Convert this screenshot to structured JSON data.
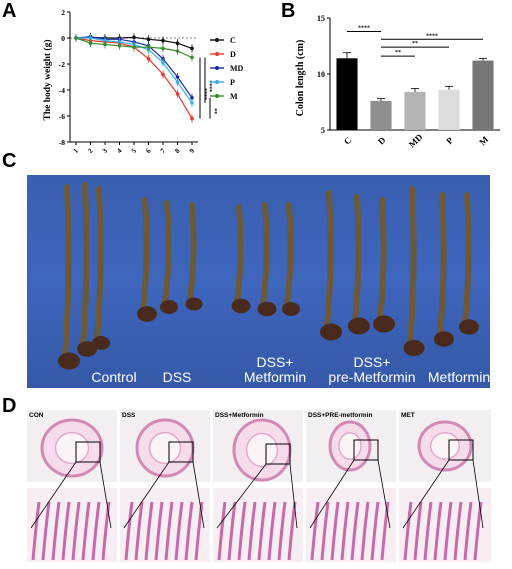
{
  "panels": {
    "a": "A",
    "b": "B",
    "c": "C",
    "d": "D"
  },
  "chart_data": [
    {
      "type": "line",
      "ylabel": "The body weight (g)",
      "xlabel": "",
      "x": [
        1,
        2,
        3,
        4,
        5,
        6,
        7,
        8,
        9
      ],
      "ylim": [
        -8,
        2
      ],
      "yticks": [
        2,
        0,
        -2,
        -4,
        -6,
        -8
      ],
      "series": [
        {
          "name": "C",
          "color": "#111111",
          "values": [
            0,
            0.05,
            0,
            0,
            0.05,
            -0.1,
            -0.2,
            -0.4,
            -0.8
          ]
        },
        {
          "name": "D",
          "color": "#e8372c",
          "values": [
            0,
            -0.2,
            -0.3,
            -0.4,
            -0.7,
            -1.6,
            -2.8,
            -4.3,
            -6.2
          ]
        },
        {
          "name": "MD",
          "color": "#1a2aa8",
          "values": [
            0,
            0.1,
            -0.1,
            -0.1,
            -0.3,
            -0.6,
            -1.6,
            -3.0,
            -4.6
          ]
        },
        {
          "name": "P",
          "color": "#39b0ea",
          "values": [
            0,
            0,
            -0.2,
            -0.3,
            -0.5,
            -0.9,
            -1.9,
            -3.4,
            -5.0
          ]
        },
        {
          "name": "M",
          "color": "#3b8b2e",
          "values": [
            0,
            -0.4,
            -0.5,
            -0.6,
            -0.7,
            -0.7,
            -0.8,
            -1.0,
            -1.5
          ]
        }
      ],
      "significance": [
        "****",
        "****",
        "**"
      ],
      "grid": false,
      "legend": "right"
    },
    {
      "type": "bar",
      "ylabel": "Colon length (cm)",
      "categories": [
        "C",
        "D",
        "MD",
        "P",
        "M"
      ],
      "values": [
        11.4,
        7.6,
        8.4,
        8.6,
        11.2
      ],
      "errors": [
        0.5,
        0.2,
        0.3,
        0.3,
        0.2
      ],
      "colors": [
        "#000000",
        "#8f8f8f",
        "#b4b4b4",
        "#dcdcdc",
        "#777777"
      ],
      "ylim": [
        5,
        15
      ],
      "yticks": [
        5,
        10,
        15
      ],
      "brackets": [
        {
          "from": "C",
          "to": "D",
          "label": "****"
        },
        {
          "from": "D",
          "to": "M",
          "label": "****"
        },
        {
          "from": "D",
          "to": "MD",
          "label": "**"
        },
        {
          "from": "D",
          "to": "P",
          "label": "**"
        }
      ]
    }
  ],
  "photo": {
    "labels": [
      "Control",
      "DSS",
      "DSS+\nMetformin",
      "DSS+\npre-Metformin",
      "Metformin"
    ]
  },
  "histology": {
    "labels": [
      "CON",
      "DSS",
      "DSS+Metformin",
      "DSS+PRE-metformin",
      "MET"
    ]
  }
}
